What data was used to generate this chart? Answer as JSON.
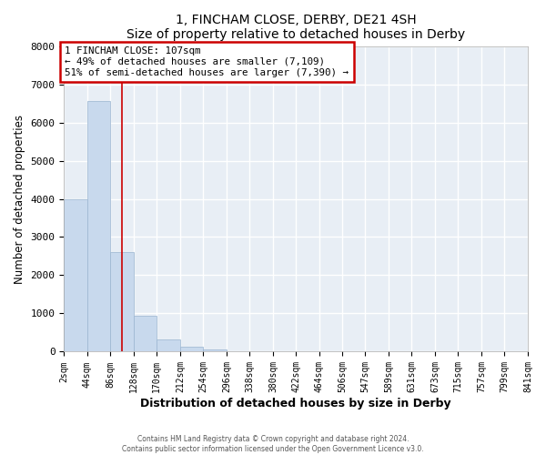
{
  "title_line1": "1, FINCHAM CLOSE, DERBY, DE21 4SH",
  "title_line2": "Size of property relative to detached houses in Derby",
  "xlabel": "Distribution of detached houses by size in Derby",
  "ylabel": "Number of detached properties",
  "bar_color": "#c8d9ed",
  "bar_edge_color": "#9ab5d0",
  "background_color": "#e8eef5",
  "grid_color": "#ffffff",
  "bin_edges": [
    2,
    44,
    86,
    128,
    170,
    212,
    254,
    296,
    338,
    380,
    422,
    464,
    506,
    547,
    589,
    631,
    673,
    715,
    757,
    799,
    841
  ],
  "bar_heights": [
    4000,
    6550,
    2600,
    950,
    330,
    130,
    50,
    0,
    0,
    0,
    0,
    0,
    0,
    0,
    0,
    0,
    0,
    0,
    0,
    0
  ],
  "ylim": [
    0,
    8000
  ],
  "yticks": [
    0,
    1000,
    2000,
    3000,
    4000,
    5000,
    6000,
    7000,
    8000
  ],
  "property_line_x": 107,
  "annotation_text": "1 FINCHAM CLOSE: 107sqm\n← 49% of detached houses are smaller (7,109)\n51% of semi-detached houses are larger (7,390) →",
  "annotation_box_color": "#ffffff",
  "annotation_box_edge": "#cc0000",
  "red_line_color": "#cc0000",
  "footer_line1": "Contains HM Land Registry data © Crown copyright and database right 2024.",
  "footer_line2": "Contains public sector information licensed under the Open Government Licence v3.0.",
  "fig_bg": "#ffffff"
}
